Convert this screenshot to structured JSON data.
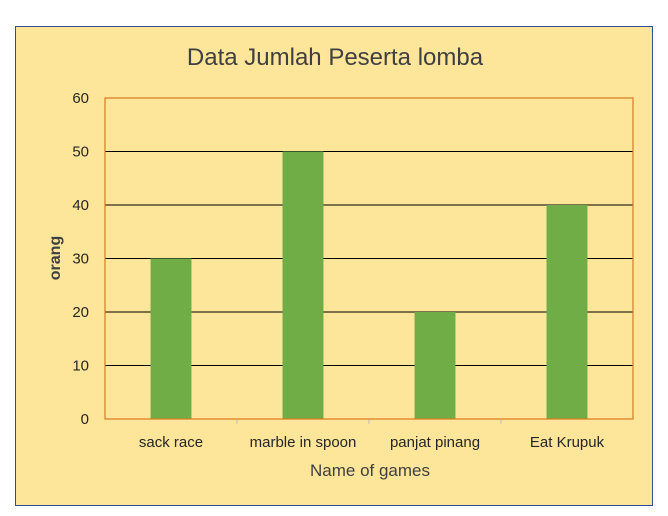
{
  "chart_data": {
    "type": "bar",
    "title": "Data Jumlah Peserta lomba",
    "xlabel": "Name of games",
    "ylabel": "orang",
    "categories": [
      "sack race",
      "marble in spoon",
      "panjat pinang",
      "Eat Krupuk"
    ],
    "values": [
      30,
      50,
      20,
      40
    ],
    "ylim": [
      0,
      60
    ],
    "yticks": [
      "0",
      "10",
      "20",
      "30",
      "40",
      "50",
      "60"
    ],
    "grid": true,
    "legend": "none",
    "colors": {
      "bar": "#70ad47",
      "background": "#fde59a",
      "plot_border": "#d97a1f",
      "gridline": "#000000",
      "frame_border": "#2f4f8f"
    }
  }
}
